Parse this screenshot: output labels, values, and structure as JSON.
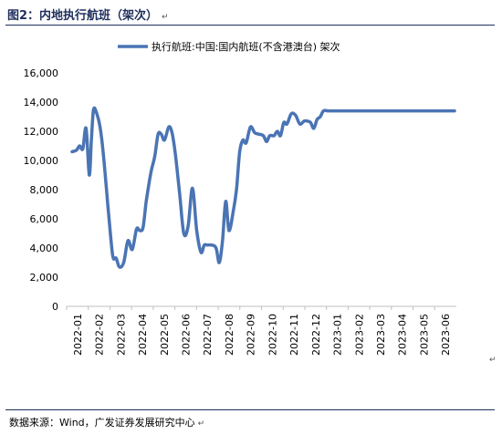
{
  "header": {
    "title": "图2：内地执行航班（架次）",
    "para_mark": "↵"
  },
  "footer": {
    "source": "数据来源：Wind，广发证券发展研究中心",
    "para_mark": "↵"
  },
  "chart_data": {
    "type": "line",
    "title": "",
    "xlabel": "",
    "ylabel": "",
    "ylim": [
      0,
      16000
    ],
    "yticks": [
      "0",
      "2,000",
      "4,000",
      "6,000",
      "8,000",
      "10,000",
      "12,000",
      "14,000",
      "16,000"
    ],
    "ytick_values": [
      0,
      2000,
      4000,
      6000,
      8000,
      10000,
      12000,
      14000,
      16000
    ],
    "xticks": [
      "2022-01",
      "2022-02",
      "2022-03",
      "2022-04",
      "2022-05",
      "2022-06",
      "2022-07",
      "2022-08",
      "2022-09",
      "2022-10",
      "2022-11",
      "2022-12",
      "2023-01",
      "2023-02",
      "2023-03",
      "2023-04",
      "2023-05",
      "2023-06"
    ],
    "grid": false,
    "legend_position": "top",
    "line_color": "#4a74b4",
    "series": [
      {
        "name": "执行航班:中国:国内航班(不含港澳台) 架次",
        "x": [
          0,
          0.2,
          0.35,
          0.5,
          0.65,
          0.8,
          0.9,
          1.0,
          1.15,
          1.3,
          1.45,
          1.6,
          1.75,
          1.9,
          2.05,
          2.2,
          2.4,
          2.6,
          2.8,
          3.0,
          3.15,
          3.3,
          3.45,
          3.6,
          3.7,
          3.85,
          4.0,
          4.15,
          4.3,
          4.5,
          4.65,
          4.8,
          5.0,
          5.2,
          5.4,
          5.6,
          5.8,
          6.0,
          6.15,
          6.3,
          6.5,
          6.7,
          6.85,
          7.0,
          7.15,
          7.3,
          7.5,
          7.65,
          7.8,
          7.95,
          8.1,
          8.3,
          8.5,
          8.7,
          8.9,
          9.05,
          9.2,
          9.4,
          9.55,
          9.7,
          9.85,
          10.0,
          10.2,
          10.4,
          10.6,
          10.8,
          10.95,
          11.1,
          11.25,
          11.4,
          11.55,
          11.7,
          11.9,
          12.05,
          12.2,
          12.35,
          12.5,
          12.65,
          12.8,
          13.0,
          13.2,
          13.4,
          13.6,
          13.8,
          14.0,
          14.2,
          14.4,
          14.6,
          14.8,
          15.0,
          15.2,
          15.4,
          15.6,
          15.8,
          16.0,
          16.2,
          16.4,
          16.6,
          16.8,
          17.0,
          17.2,
          17.4,
          17.6,
          17.8
        ],
        "values": [
          10600,
          10700,
          11000,
          10800,
          12200,
          9000,
          11500,
          13500,
          13200,
          12300,
          10500,
          8000,
          5500,
          3400,
          3300,
          2700,
          3000,
          4500,
          3900,
          5300,
          5200,
          5400,
          7200,
          8600,
          9400,
          10300,
          11800,
          11800,
          11400,
          12300,
          11900,
          10500,
          7800,
          5000,
          5500,
          8100,
          5200,
          3700,
          4200,
          4200,
          4200,
          4000,
          3000,
          4500,
          7200,
          5200,
          6500,
          8000,
          10600,
          11400,
          11200,
          12300,
          11900,
          11800,
          11700,
          11300,
          11700,
          11700,
          12000,
          11700,
          12600,
          12500,
          13200,
          13100,
          12500,
          12700,
          12700,
          12600,
          12200,
          12800,
          13000,
          13400,
          13400,
          13400,
          13400,
          13400,
          13400,
          13400,
          13400,
          13400,
          13400,
          13400,
          13400,
          13400,
          13400,
          13400,
          13400,
          13400,
          13400,
          13400,
          13400,
          13400,
          13400,
          13400,
          13400,
          13400,
          13400,
          13400,
          13400,
          13400,
          13400,
          13400,
          13400,
          13400
        ]
      }
    ]
  }
}
